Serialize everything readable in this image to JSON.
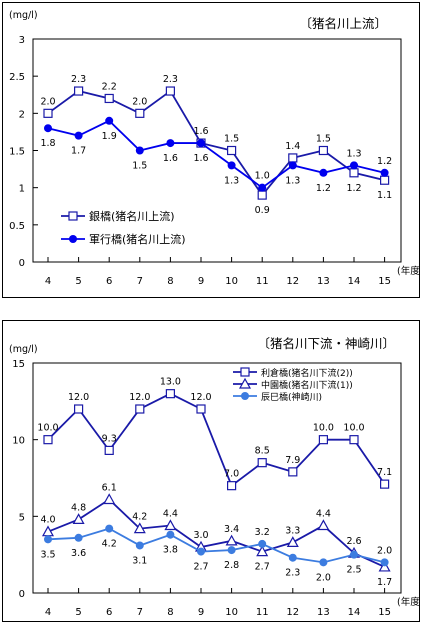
{
  "chart_data": [
    {
      "type": "line",
      "title": "〔猪名川上流〕",
      "unit_label": "(mg/l)",
      "x_unit_label": "(年度)",
      "categories": [
        "4",
        "5",
        "6",
        "7",
        "8",
        "9",
        "10",
        "11",
        "12",
        "13",
        "14",
        "15"
      ],
      "ylim": [
        0,
        3
      ],
      "yticks": [
        "0",
        "0.5",
        "1",
        "1.5",
        "2",
        "2.5",
        "3"
      ],
      "grid": false,
      "legend_position": "bottom-left",
      "series": [
        {
          "name": "銀橋(猪名川上流)",
          "marker": "square-open",
          "color": "#1a1aa8",
          "values": [
            2.0,
            2.3,
            2.2,
            2.0,
            2.3,
            1.6,
            1.5,
            0.9,
            1.4,
            1.5,
            1.2,
            1.1
          ],
          "labels": [
            "2.0",
            "2.3",
            "2.2",
            "2.0",
            "2.3",
            "1.6",
            "1.5",
            "0.9",
            "1.4",
            "1.5",
            "1.2",
            "1.1"
          ],
          "label_side": [
            "above",
            "above",
            "above",
            "above",
            "above",
            "above",
            "above",
            "below",
            "above",
            "above",
            "below",
            "below"
          ]
        },
        {
          "name": "軍行橋(猪名川上流)",
          "marker": "circle-filled",
          "color": "#0000ee",
          "values": [
            1.8,
            1.7,
            1.9,
            1.5,
            1.6,
            1.6,
            1.3,
            1.0,
            1.3,
            1.2,
            1.3,
            1.2
          ],
          "labels": [
            "1.8",
            "1.7",
            "1.9",
            "1.5",
            "1.6",
            "1.6",
            "1.3",
            "1.0",
            "1.3",
            "1.2",
            "1.3",
            "1.2"
          ],
          "label_side": [
            "below",
            "below",
            "below",
            "below",
            "below",
            "below",
            "below",
            "above",
            "below",
            "below",
            "above",
            "above"
          ]
        }
      ]
    },
    {
      "type": "line",
      "title": "〔猪名川下流・神崎川〕",
      "unit_label": "(mg/l)",
      "x_unit_label": "(年度)",
      "categories": [
        "4",
        "5",
        "6",
        "7",
        "8",
        "9",
        "10",
        "11",
        "12",
        "13",
        "14",
        "15"
      ],
      "ylim": [
        0,
        15
      ],
      "yticks": [
        "0",
        "5",
        "10",
        "15"
      ],
      "grid": false,
      "legend_position": "top-right",
      "series": [
        {
          "name": "利倉橋(猪名川下流(2))",
          "marker": "square-open",
          "color": "#1a1aa8",
          "values": [
            10.0,
            12.0,
            9.3,
            12.0,
            13.0,
            12.0,
            7.0,
            8.5,
            7.9,
            10.0,
            10.0,
            7.1
          ],
          "labels": [
            "10.0",
            "12.0",
            "9.3",
            "12.0",
            "13.0",
            "12.0",
            "7.0",
            "8.5",
            "7.9",
            "10.0",
            "10.0",
            "7.1"
          ],
          "label_side": [
            "above",
            "above",
            "above",
            "above",
            "above",
            "above",
            "above",
            "above",
            "above",
            "above",
            "above",
            "above"
          ]
        },
        {
          "name": "中園橋(猪名川下流(1))",
          "marker": "triangle-open",
          "color": "#1a1aa8",
          "values": [
            4.0,
            4.8,
            6.1,
            4.2,
            4.4,
            3.0,
            3.4,
            2.7,
            3.3,
            4.4,
            2.6,
            1.7
          ],
          "labels": [
            "4.0",
            "4.8",
            "6.1",
            "4.2",
            "4.4",
            "3.0",
            "3.4",
            "2.7",
            "3.3",
            "4.4",
            "2.6",
            "1.7"
          ],
          "label_side": [
            "above",
            "above",
            "above",
            "above",
            "above",
            "above",
            "above",
            "below",
            "above",
            "above",
            "above",
            "below"
          ]
        },
        {
          "name": "辰巳橋(神崎川)",
          "marker": "circle-filled",
          "color": "#3c7ce0",
          "values": [
            3.5,
            3.6,
            4.2,
            3.1,
            3.8,
            2.7,
            2.8,
            3.2,
            2.3,
            2.0,
            2.5,
            2.0
          ],
          "labels": [
            "3.5",
            "3.6",
            "4.2",
            "3.1",
            "3.8",
            "2.7",
            "2.8",
            "3.2",
            "2.3",
            "2.0",
            "2.5",
            "2.0"
          ],
          "label_side": [
            "below",
            "below",
            "below",
            "below",
            "below",
            "below",
            "below",
            "above",
            "below",
            "below",
            "below",
            "above"
          ]
        }
      ]
    }
  ]
}
